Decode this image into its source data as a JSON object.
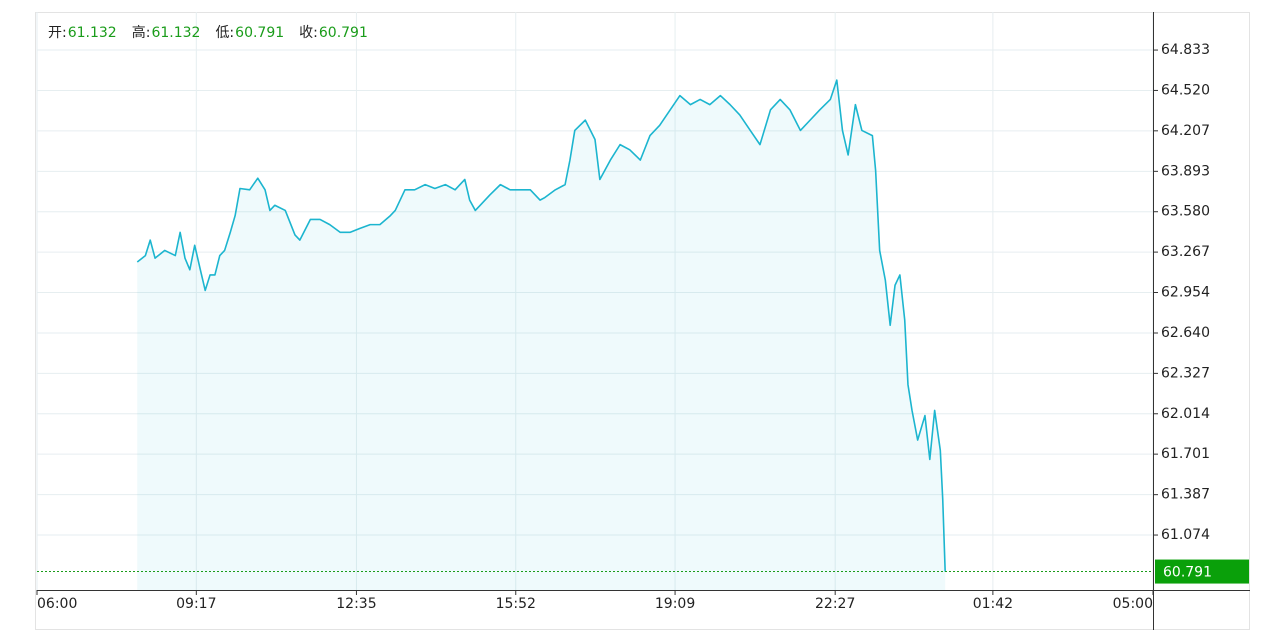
{
  "chart_data": {
    "type": "line",
    "ohlc": [
      {
        "label": "开:",
        "value": 61.132
      },
      {
        "label": "高:",
        "value": 61.132
      },
      {
        "label": "低:",
        "value": 60.791
      },
      {
        "label": "收:",
        "value": 60.791
      }
    ],
    "x": [
      124,
      134,
      140,
      146,
      158,
      171,
      177,
      183,
      189,
      195,
      202,
      208,
      214,
      220,
      226,
      232,
      239,
      245,
      251,
      263,
      273,
      282,
      288,
      294,
      307,
      319,
      325,
      338,
      350,
      362,
      375,
      387,
      399,
      412,
      424,
      437,
      443,
      455,
      467,
      480,
      492,
      505,
      517,
      529,
      535,
      542,
      548,
      560,
      573,
      585,
      597,
      610,
      622,
      628,
      641,
      653,
      659,
      665,
      678,
      690,
      696,
      709,
      721,
      733,
      746,
      758,
      770,
      783,
      795,
      808,
      820,
      832,
      845,
      857,
      869,
      882,
      894,
      907,
      919,
      931,
      944,
      956,
      968,
      981,
      989,
      996,
      1003,
      1012,
      1020,
      1033,
      1037,
      1042,
      1049,
      1055,
      1061,
      1067,
      1073,
      1077,
      1082,
      1089,
      1098,
      1104,
      1110,
      1117,
      1120,
      1123
    ],
    "series": [
      {
        "color": "#1cb5cf",
        "values": [
          63.19,
          63.24,
          63.36,
          63.22,
          63.28,
          63.24,
          63.42,
          63.22,
          63.13,
          63.32,
          63.13,
          62.97,
          63.09,
          63.09,
          63.24,
          63.28,
          63.42,
          63.55,
          63.76,
          63.75,
          63.84,
          63.75,
          63.59,
          63.63,
          63.59,
          63.4,
          63.36,
          63.52,
          63.52,
          63.48,
          63.42,
          63.42,
          63.45,
          63.48,
          63.48,
          63.55,
          63.59,
          63.75,
          63.75,
          63.79,
          63.76,
          63.79,
          63.75,
          63.83,
          63.67,
          63.59,
          63.63,
          63.71,
          63.79,
          63.75,
          63.75,
          63.75,
          63.67,
          63.69,
          63.75,
          63.79,
          63.98,
          64.21,
          64.29,
          64.14,
          63.83,
          63.98,
          64.1,
          64.06,
          63.98,
          64.17,
          64.25,
          64.37,
          64.48,
          64.41,
          64.45,
          64.41,
          64.48,
          64.41,
          64.33,
          64.21,
          64.1,
          64.37,
          64.45,
          64.37,
          64.21,
          64.29,
          64.37,
          64.45,
          64.6,
          64.21,
          64.02,
          64.41,
          64.21,
          64.17,
          63.9,
          63.28,
          63.05,
          62.7,
          63.01,
          63.09,
          62.74,
          62.24,
          62.04,
          61.81,
          62.0,
          61.66,
          62.04,
          61.73,
          61.35,
          60.791
        ]
      }
    ],
    "xlim": [
      0,
      1380
    ],
    "xticks": [
      {
        "value": 0,
        "label": "06:00"
      },
      {
        "value": 197,
        "label": "09:17"
      },
      {
        "value": 395,
        "label": "12:35"
      },
      {
        "value": 592,
        "label": "15:52"
      },
      {
        "value": 789,
        "label": "19:09"
      },
      {
        "value": 987,
        "label": "22:27"
      },
      {
        "value": 1182,
        "label": "01:42"
      },
      {
        "value": 1380,
        "label": "05:00"
      }
    ],
    "ylim": [
      60.648,
      65.128
    ],
    "yticks": [
      61.074,
      61.387,
      61.701,
      62.014,
      62.327,
      {
        "value": 62.64,
        "label": "62.640"
      },
      62.954,
      63.267,
      {
        "value": 63.58,
        "label": "63.580"
      },
      63.893,
      64.207,
      {
        "value": 64.52,
        "label": "64.520"
      },
      64.833
    ],
    "last_price": 60.791,
    "grid": true
  }
}
